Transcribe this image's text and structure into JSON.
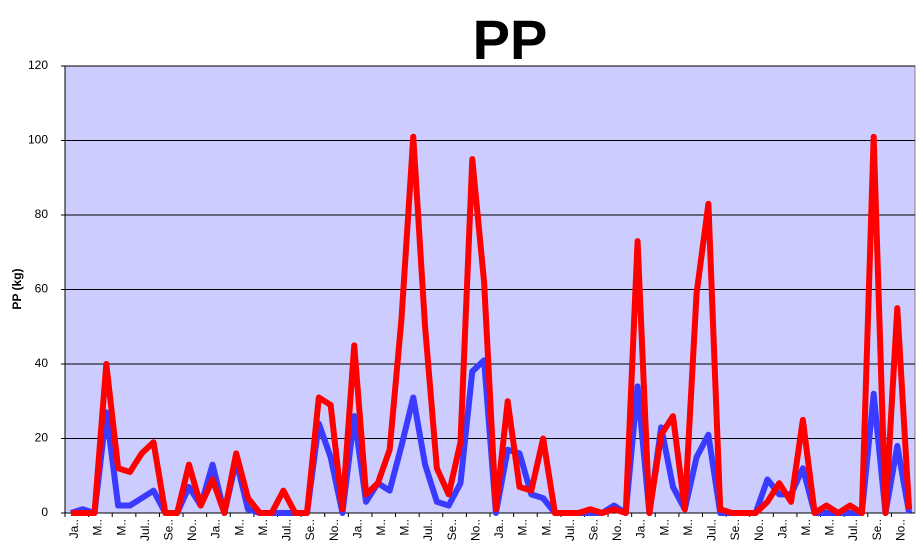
{
  "chart_data": {
    "type": "line",
    "title": "PP",
    "y_label": "PP (kg)",
    "categories": [
      "Ja..",
      null,
      "M..",
      null,
      "M..",
      null,
      "Jul..",
      null,
      "Se..",
      null,
      "No..",
      null,
      "Ja..",
      null,
      "M..",
      null,
      "M..",
      null,
      "Jul..",
      null,
      "Se..",
      null,
      "No..",
      null,
      "Ja..",
      null,
      "M..",
      null,
      "M..",
      null,
      "Jul..",
      null,
      "Se..",
      null,
      "No..",
      null,
      "Ja..",
      null,
      "M..",
      null,
      "M..",
      null,
      "Jul..",
      null,
      "Se..",
      null,
      "No..",
      null,
      "Ja..",
      null,
      "M..",
      null,
      "M..",
      null,
      "Jul..",
      null,
      "Se..",
      null,
      "No..",
      null,
      "Ja..",
      null,
      "M..",
      null,
      "M..",
      null,
      "Jul..",
      null,
      "Se..",
      null,
      "No..",
      null
    ],
    "series": [
      {
        "color": "#3b3bff",
        "values": [
          0,
          1,
          0,
          27,
          2,
          2,
          4,
          6,
          0,
          0,
          7,
          2,
          13,
          0,
          14,
          1,
          0,
          0,
          0,
          0,
          0,
          24,
          15,
          0,
          26,
          3,
          8,
          6,
          18,
          31,
          13,
          3,
          2,
          8,
          38,
          41,
          0,
          17,
          16,
          5,
          4,
          0,
          0,
          0,
          0,
          0,
          2,
          0,
          34,
          0,
          23,
          7,
          1,
          15,
          21,
          0,
          0,
          0,
          0,
          9,
          5,
          5,
          12,
          0,
          0,
          0,
          0,
          0,
          32,
          0,
          18,
          0
        ]
      },
      {
        "color": "#ff0000",
        "values": [
          0,
          0,
          0,
          40,
          12,
          11,
          16,
          19,
          0,
          0,
          13,
          2,
          9,
          0,
          16,
          4,
          0,
          0,
          6,
          0,
          0,
          31,
          29,
          1,
          45,
          5,
          8,
          17,
          52,
          101,
          50,
          12,
          5,
          19,
          95,
          62,
          1,
          30,
          7,
          6,
          20,
          0,
          0,
          0,
          1,
          0,
          1,
          0,
          73,
          0,
          21,
          26,
          1,
          59,
          83,
          1,
          0,
          0,
          0,
          3,
          8,
          3,
          25,
          0,
          2,
          0,
          2,
          0,
          101,
          0,
          55,
          1
        ]
      }
    ],
    "ylim": [
      0,
      120
    ],
    "yticks": [
      0,
      20,
      40,
      60,
      80,
      100,
      120
    ],
    "grid": true,
    "plot_background": "#ccccff"
  }
}
